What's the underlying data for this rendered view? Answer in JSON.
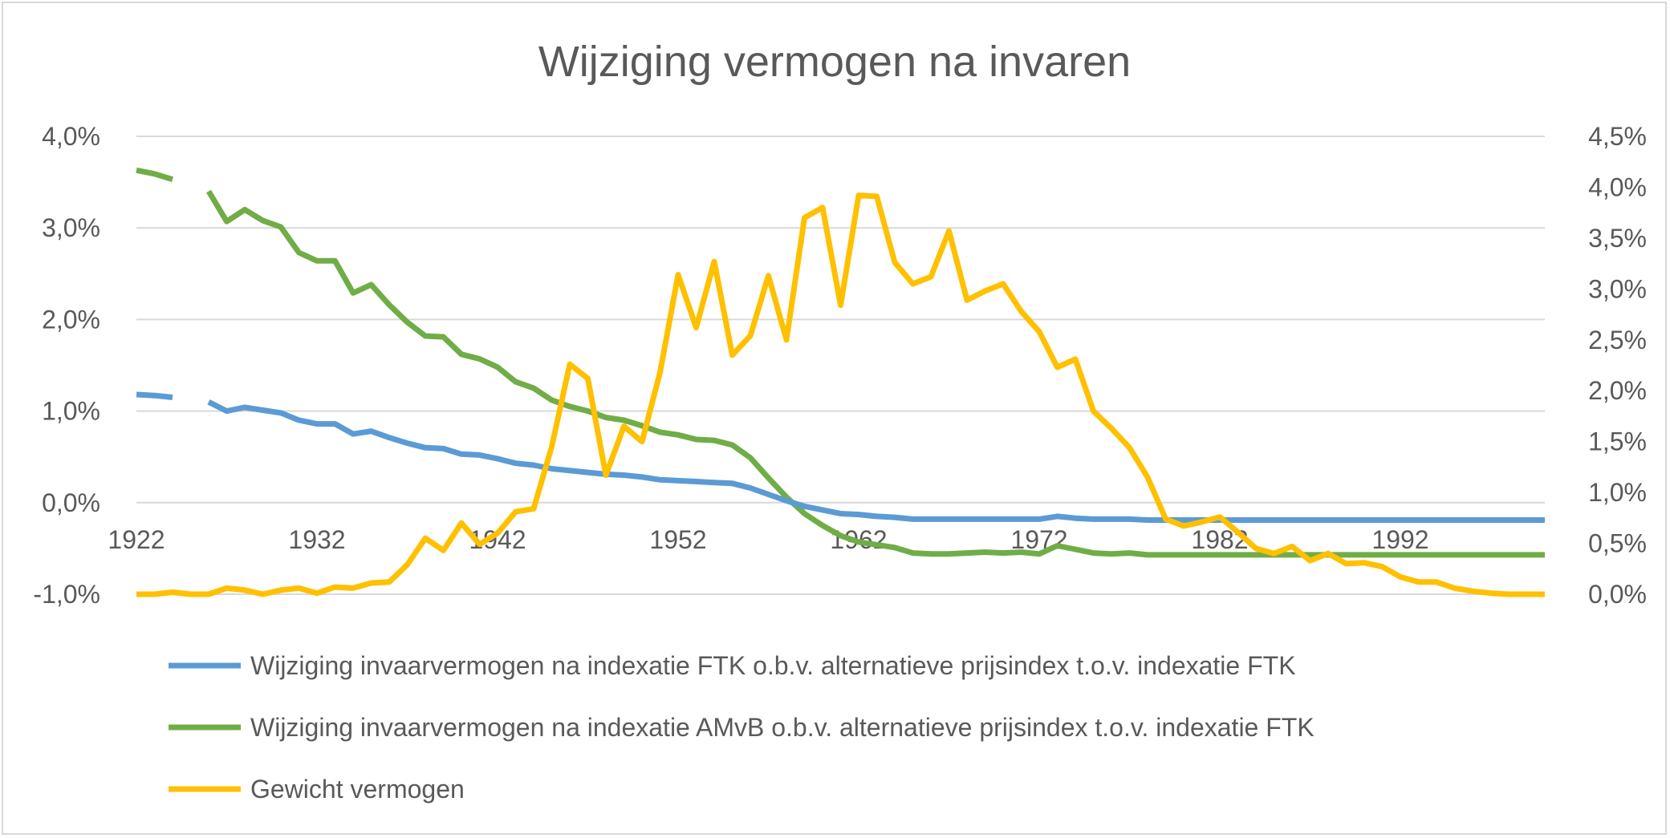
{
  "chart_data": {
    "type": "line",
    "title": "Wijziging vermogen na invaren",
    "x_tick_labels": [
      "1922",
      "1932",
      "1942",
      "1952",
      "1962",
      "1972",
      "1982",
      "1992"
    ],
    "y_left_tick_labels": [
      "4,0%",
      "3,0%",
      "2,0%",
      "1,0%",
      "0,0%",
      "-1,0%"
    ],
    "y_right_tick_labels": [
      "4,5%",
      "4,0%",
      "3,5%",
      "3,0%",
      "2,5%",
      "2,0%",
      "1,5%",
      "1,0%",
      "0,5%",
      "0,0%"
    ],
    "ylim_left": [
      -1.0,
      4.0
    ],
    "ylim_right": [
      0.0,
      4.5
    ],
    "xlim": [
      1922,
      2000
    ],
    "grid": true,
    "legend_position": "bottom",
    "colors": {
      "blue": "#5b9bd5",
      "green": "#70ad47",
      "yellow": "#ffc000"
    },
    "x": [
      1922,
      1923,
      1924,
      1925,
      1926,
      1927,
      1928,
      1929,
      1930,
      1931,
      1932,
      1933,
      1934,
      1935,
      1936,
      1937,
      1938,
      1939,
      1940,
      1941,
      1942,
      1943,
      1944,
      1945,
      1946,
      1947,
      1948,
      1949,
      1950,
      1951,
      1952,
      1953,
      1954,
      1955,
      1956,
      1957,
      1958,
      1959,
      1960,
      1961,
      1962,
      1963,
      1964,
      1965,
      1966,
      1967,
      1968,
      1969,
      1970,
      1971,
      1972,
      1973,
      1974,
      1975,
      1976,
      1977,
      1978,
      1979,
      1980,
      1981,
      1982,
      1983,
      1984,
      1985,
      1986,
      1987,
      1988,
      1989,
      1990,
      1991,
      1992,
      1993,
      1994,
      1995,
      1996,
      1997,
      1998,
      1999,
      2000
    ],
    "series": [
      {
        "name": "Wijziging invaarvermogen na indexatie FTK o.b.v. alternatieve prijsindex t.o.v. indexatie FTK",
        "axis": "left",
        "color": "#5b9bd5",
        "values": [
          1.18,
          1.17,
          1.15,
          null,
          1.1,
          1.0,
          1.04,
          1.01,
          0.98,
          0.9,
          0.86,
          0.86,
          0.75,
          0.78,
          0.71,
          0.65,
          0.6,
          0.59,
          0.53,
          0.52,
          0.48,
          0.43,
          0.41,
          0.37,
          0.35,
          0.33,
          0.31,
          0.3,
          0.28,
          0.25,
          0.24,
          0.23,
          0.22,
          0.21,
          0.16,
          0.09,
          0.02,
          -0.04,
          -0.08,
          -0.12,
          -0.13,
          -0.15,
          -0.16,
          -0.18,
          -0.18,
          -0.18,
          -0.18,
          -0.18,
          -0.18,
          -0.18,
          -0.18,
          -0.15,
          -0.17,
          -0.18,
          -0.18,
          -0.18,
          -0.19,
          -0.19,
          -0.19,
          -0.19,
          -0.19,
          -0.19,
          -0.19,
          -0.19,
          -0.19,
          -0.19,
          -0.19,
          -0.19,
          -0.19,
          -0.19,
          -0.19,
          -0.19,
          -0.19,
          -0.19,
          -0.19,
          -0.19,
          -0.19,
          -0.19,
          -0.19
        ]
      },
      {
        "name": "Wijziging invaarvermogen na indexatie AMvB o.b.v. alternatieve prijsindex t.o.v. indexatie FTK",
        "axis": "left",
        "color": "#70ad47",
        "values": [
          3.63,
          3.59,
          3.53,
          null,
          3.4,
          3.07,
          3.2,
          3.08,
          3.01,
          2.73,
          2.64,
          2.64,
          2.29,
          2.38,
          2.16,
          1.97,
          1.82,
          1.81,
          1.62,
          1.57,
          1.48,
          1.32,
          1.25,
          1.12,
          1.05,
          1.0,
          0.93,
          0.9,
          0.84,
          0.77,
          0.74,
          0.69,
          0.68,
          0.63,
          0.49,
          0.27,
          0.06,
          -0.12,
          -0.25,
          -0.36,
          -0.43,
          -0.46,
          -0.49,
          -0.55,
          -0.56,
          -0.56,
          -0.55,
          -0.54,
          -0.55,
          -0.54,
          -0.56,
          -0.47,
          -0.51,
          -0.55,
          -0.56,
          -0.55,
          -0.57,
          -0.57,
          -0.57,
          -0.57,
          -0.57,
          -0.57,
          -0.57,
          -0.57,
          -0.57,
          -0.57,
          -0.57,
          -0.57,
          -0.57,
          -0.57,
          -0.57,
          -0.57,
          -0.57,
          -0.57,
          -0.57,
          -0.57,
          -0.57,
          -0.57,
          -0.57
        ]
      },
      {
        "name": "Gewicht vermogen",
        "axis": "right",
        "color": "#ffc000",
        "values": [
          0.0,
          0.0,
          0.02,
          0.0,
          0.0,
          0.06,
          0.04,
          0.0,
          0.04,
          0.06,
          0.01,
          0.07,
          0.06,
          0.11,
          0.12,
          0.29,
          0.55,
          0.43,
          0.7,
          0.49,
          0.6,
          0.81,
          0.84,
          1.45,
          2.26,
          2.12,
          1.17,
          1.65,
          1.5,
          2.18,
          3.14,
          2.62,
          3.27,
          2.35,
          2.54,
          3.13,
          2.5,
          3.7,
          3.8,
          2.84,
          3.92,
          3.91,
          3.26,
          3.05,
          3.12,
          3.57,
          2.89,
          2.98,
          3.05,
          2.78,
          2.58,
          2.23,
          2.31,
          1.8,
          1.63,
          1.44,
          1.15,
          0.74,
          0.67,
          0.71,
          0.76,
          0.61,
          0.45,
          0.4,
          0.47,
          0.33,
          0.4,
          0.3,
          0.31,
          0.27,
          0.17,
          0.12,
          0.12,
          0.06,
          0.03,
          0.01,
          0.0,
          0.0,
          0.0
        ]
      }
    ]
  }
}
